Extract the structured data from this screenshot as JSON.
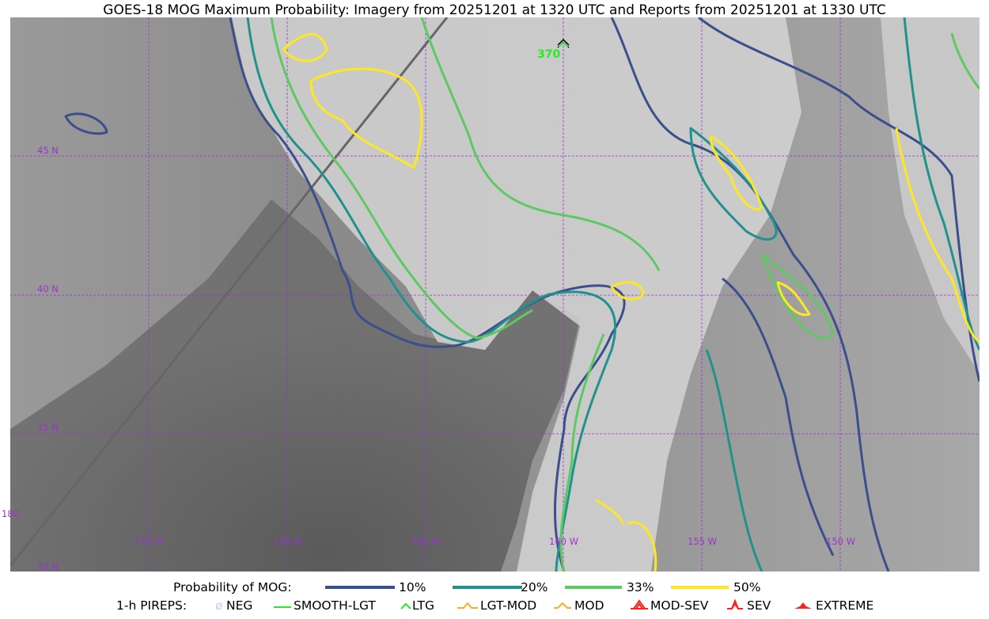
{
  "title": "GOES-18 MOG Maximum Probability: Imagery from 20251201 at 1320 UTC and Reports from 20251201 at 1330 UTC",
  "map": {
    "latitude_labels": [
      "45 N",
      "40 N",
      "35 N",
      "30 N"
    ],
    "longitude_labels": [
      "180",
      "175 W",
      "170 W",
      "165 W",
      "160 W",
      "155 W",
      "150 W"
    ],
    "reports": [
      {
        "type": "LTG",
        "label": "370",
        "color": "#22ee22"
      }
    ]
  },
  "legend": {
    "probability_title": "Probability of MOG:",
    "probability_levels": [
      {
        "label": "10%",
        "color": "#3b4f8c"
      },
      {
        "label": "20%",
        "color": "#21918c"
      },
      {
        "label": "33%",
        "color": "#5ec962"
      },
      {
        "label": "50%",
        "color": "#fde725"
      }
    ],
    "pireps_title": "1-h PIREPS:",
    "pireps": [
      {
        "label": "NEG",
        "icon": "neg-icon",
        "color": "#c8c8ff"
      },
      {
        "label": "SMOOTH-LGT",
        "icon": "smooth-lgt-icon",
        "color": "#22ee22"
      },
      {
        "label": "LTG",
        "icon": "ltg-icon",
        "color": "#22ee22"
      },
      {
        "label": "LGT-MOD",
        "icon": "lgt-mod-icon",
        "color": "#ffaa22"
      },
      {
        "label": "MOD",
        "icon": "mod-icon",
        "color": "#ffaa22"
      },
      {
        "label": "MOD-SEV",
        "icon": "mod-sev-icon",
        "color": "#ff2222"
      },
      {
        "label": "SEV",
        "icon": "sev-icon",
        "color": "#ff2222"
      },
      {
        "label": "EXTREME",
        "icon": "extreme-icon",
        "color": "#ff2222"
      }
    ]
  }
}
